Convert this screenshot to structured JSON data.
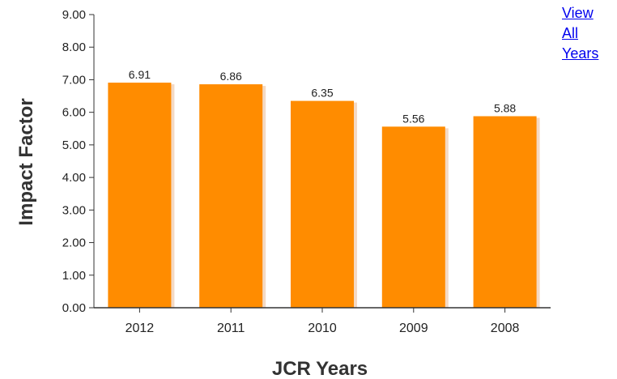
{
  "links": {
    "view_all_lines": [
      "View",
      "All",
      "Years"
    ]
  },
  "chart_data": {
    "type": "bar",
    "title": "",
    "xlabel": "JCR Years",
    "ylabel": "Impact Factor",
    "categories": [
      "2012",
      "2011",
      "2010",
      "2009",
      "2008"
    ],
    "values": [
      6.91,
      6.86,
      6.35,
      5.56,
      5.88
    ],
    "value_labels": [
      "6.91",
      "6.86",
      "6.35",
      "5.56",
      "5.88"
    ],
    "ylim": [
      0,
      9
    ],
    "yticks": [
      "0.00",
      "1.00",
      "2.00",
      "3.00",
      "4.00",
      "5.00",
      "6.00",
      "7.00",
      "8.00",
      "9.00"
    ],
    "grid": false,
    "legend": "none",
    "colors": {
      "bar": "#ff8c00",
      "bar_shadow": "#f4d9c4",
      "axis": "#333333",
      "text": "#222222"
    }
  }
}
